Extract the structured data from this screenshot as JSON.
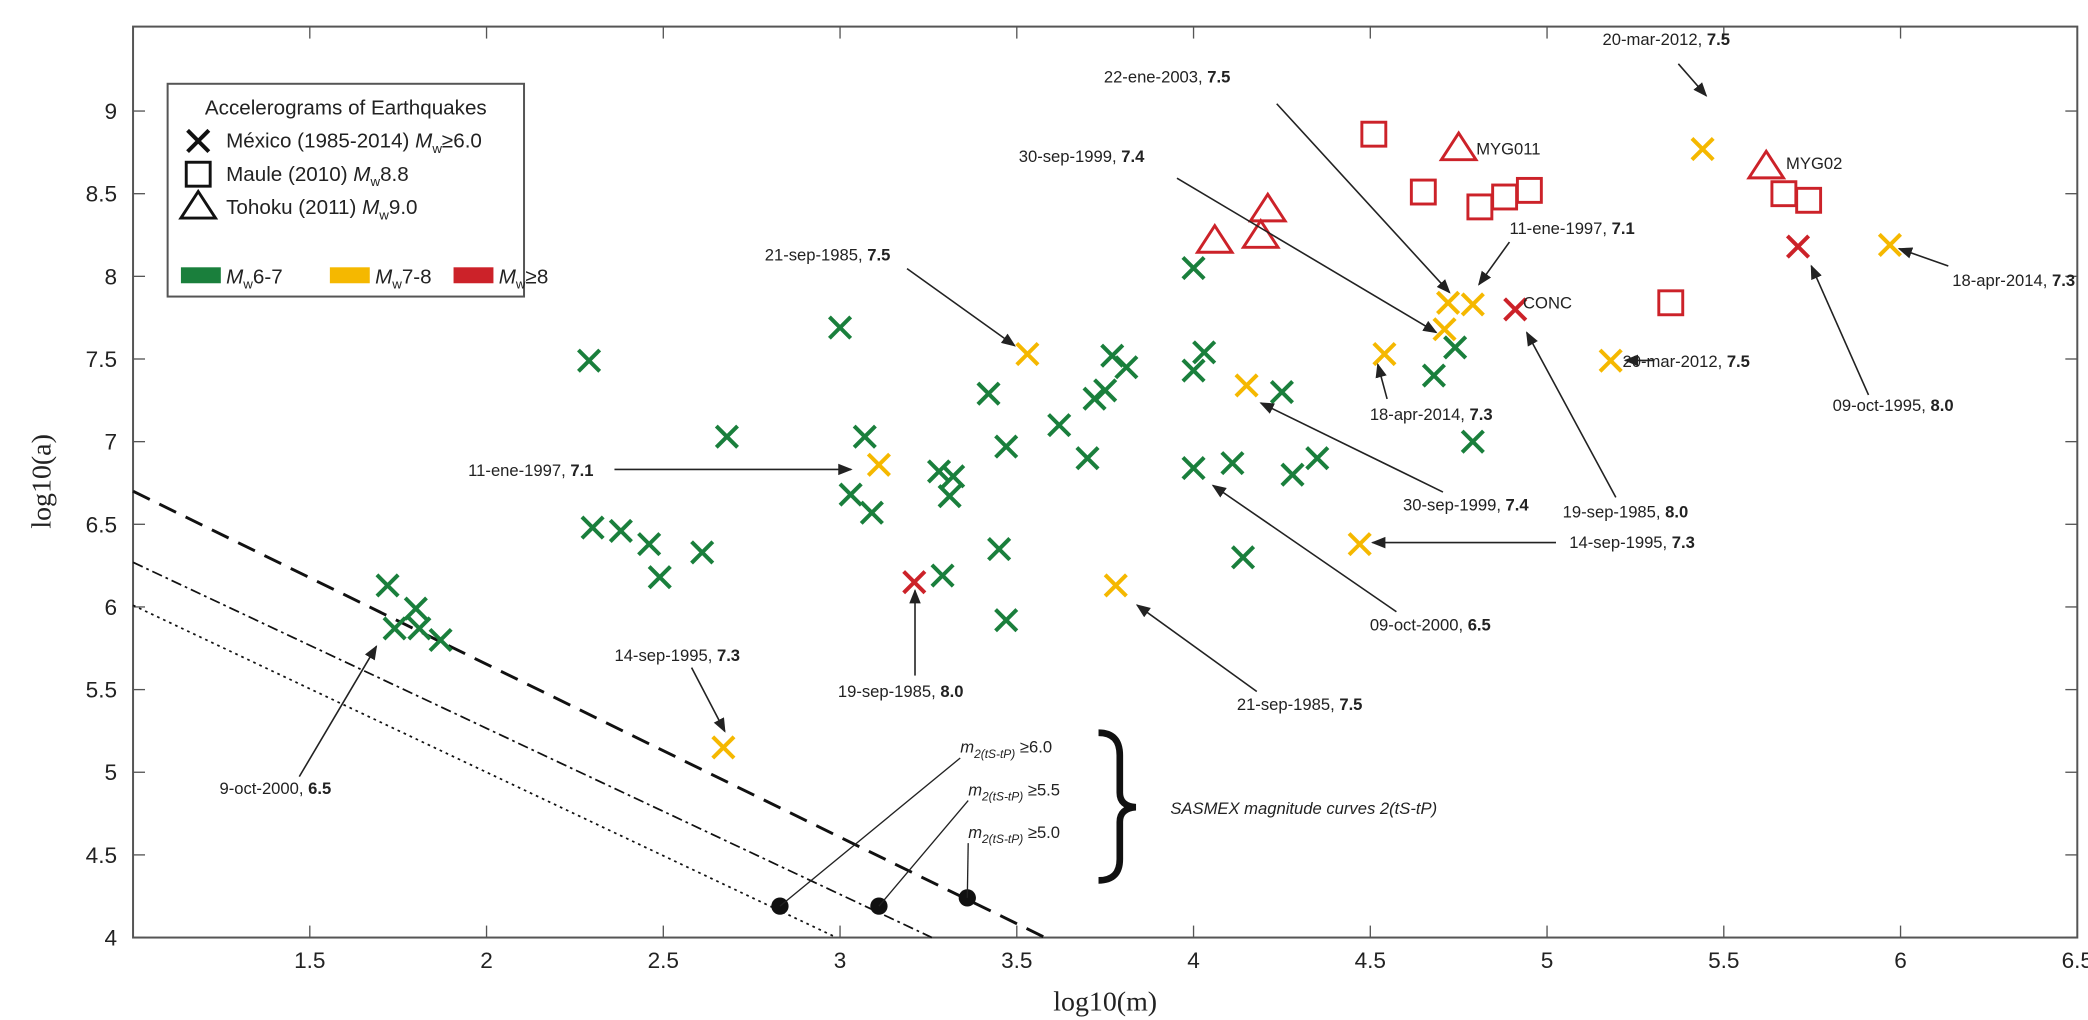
{
  "chart_data": {
    "type": "scatter",
    "xlabel": "log10(m)",
    "ylabel": "log10(a)",
    "xlim": [
      1,
      6.5
    ],
    "ylim": [
      4,
      9.5
    ],
    "xticks": [
      "1.5",
      "2",
      "2.5",
      "3",
      "3.5",
      "4",
      "4.5",
      "5",
      "5.5",
      "6",
      "6.5"
    ],
    "yticks": [
      "4",
      "4.5",
      "5",
      "5.5",
      "6",
      "6.5",
      "7",
      "7.5",
      "8",
      "8.5",
      "9"
    ],
    "grid": false,
    "legend": {
      "placement": "top-left",
      "title": "Accelerograms of Earthquakes",
      "entries": [
        {
          "marker": "cross",
          "pre": "México (1985-2014) ",
          "sym": "M",
          "sub": "w",
          "post": "≥6.0"
        },
        {
          "marker": "square",
          "pre": "Maule (2010) ",
          "sym": "M",
          "sub": "w",
          "post": "8.8"
        },
        {
          "marker": "triangle",
          "pre": "Tohoku (2011) ",
          "sym": "M",
          "sub": "w",
          "post": "9.0"
        }
      ],
      "colors": [
        {
          "color": "#1a7f3c",
          "sym": "M",
          "sub": "w",
          "post": "6-7"
        },
        {
          "color": "#f5b800",
          "sym": "M",
          "sub": "w",
          "post": "7-8"
        },
        {
          "color": "#cc2229",
          "sym": "M",
          "sub": "w",
          "post": "≥8"
        }
      ]
    },
    "series": [
      {
        "name": "México (1985-2014) Mw≥6.0 — Mw 6-7",
        "marker": "cross",
        "color": "#1a7f3c",
        "points": [
          [
            2.29,
            7.49
          ],
          [
            2.68,
            7.03
          ],
          [
            2.3,
            6.48
          ],
          [
            2.38,
            6.46
          ],
          [
            2.46,
            6.38
          ],
          [
            2.49,
            6.18
          ],
          [
            2.61,
            6.33
          ],
          [
            1.72,
            6.13
          ],
          [
            1.74,
            5.87
          ],
          [
            1.8,
            5.99
          ],
          [
            1.81,
            5.87
          ],
          [
            1.87,
            5.8
          ],
          [
            3.0,
            7.69
          ],
          [
            3.07,
            7.03
          ],
          [
            3.03,
            6.68
          ],
          [
            3.09,
            6.57
          ],
          [
            3.28,
            6.82
          ],
          [
            3.32,
            6.79
          ],
          [
            3.31,
            6.67
          ],
          [
            3.29,
            6.19
          ],
          [
            3.42,
            7.29
          ],
          [
            3.47,
            6.97
          ],
          [
            3.45,
            6.35
          ],
          [
            3.47,
            5.92
          ],
          [
            3.62,
            7.1
          ],
          [
            3.7,
            6.9
          ],
          [
            3.72,
            7.26
          ],
          [
            3.75,
            7.31
          ],
          [
            3.77,
            7.52
          ],
          [
            3.81,
            7.45
          ],
          [
            4.0,
            8.05
          ],
          [
            4.03,
            7.54
          ],
          [
            4.0,
            7.43
          ],
          [
            4.0,
            6.84
          ],
          [
            4.11,
            6.87
          ],
          [
            4.14,
            6.3
          ],
          [
            4.25,
            7.3
          ],
          [
            4.28,
            6.8
          ],
          [
            4.35,
            6.9
          ],
          [
            4.68,
            7.4
          ],
          [
            4.74,
            7.57
          ],
          [
            4.79,
            7.0
          ]
        ]
      },
      {
        "name": "México (1985-2014) Mw≥6.0 — Mw 7-8",
        "marker": "cross",
        "color": "#f5b800",
        "points": [
          [
            2.67,
            5.15
          ],
          [
            3.11,
            6.86
          ],
          [
            3.53,
            7.53
          ],
          [
            3.78,
            6.13
          ],
          [
            4.15,
            7.34
          ],
          [
            4.54,
            7.53
          ],
          [
            4.47,
            6.38
          ],
          [
            4.71,
            7.68
          ],
          [
            4.72,
            7.84
          ],
          [
            4.79,
            7.83
          ],
          [
            5.18,
            7.49
          ],
          [
            5.44,
            8.77
          ],
          [
            5.97,
            8.19
          ]
        ]
      },
      {
        "name": "México (1985-2014) Mw≥6.0 — Mw≥8",
        "marker": "cross",
        "color": "#cc2229",
        "points": [
          [
            3.21,
            6.15
          ],
          [
            4.91,
            7.8
          ],
          [
            5.71,
            8.18
          ]
        ]
      },
      {
        "name": "Maule (2010) Mw8.8",
        "marker": "square",
        "color": "#cc2229",
        "points": [
          [
            4.51,
            8.86
          ],
          [
            4.65,
            8.51
          ],
          [
            4.81,
            8.42
          ],
          [
            4.88,
            8.48
          ],
          [
            4.95,
            8.52
          ],
          [
            5.35,
            7.84
          ],
          [
            5.67,
            8.5
          ],
          [
            5.74,
            8.46
          ]
        ]
      },
      {
        "name": "Tohoku (2011) Mw9.0",
        "marker": "triangle",
        "color": "#cc2229",
        "points": [
          [
            4.75,
            8.77
          ],
          [
            5.62,
            8.66
          ],
          [
            4.06,
            8.21
          ],
          [
            4.21,
            8.4
          ],
          [
            4.19,
            8.24
          ]
        ]
      }
    ],
    "station_labels": [
      "MYG011",
      "MYG02",
      "CONC"
    ],
    "annotations": [
      {
        "date": "20-mar-2012, ",
        "mag": "7.5"
      },
      {
        "date": "22-ene-2003, ",
        "mag": "7.5"
      },
      {
        "date": "30-sep-1999, ",
        "mag": "7.4"
      },
      {
        "date": "11-ene-1997, ",
        "mag": "7.1"
      },
      {
        "date": "21-sep-1985, ",
        "mag": "7.5"
      },
      {
        "date": "11-ene-1997, ",
        "mag": "7.1"
      },
      {
        "date": "18-apr-2014, ",
        "mag": "7.3"
      },
      {
        "date": "30-sep-1999, ",
        "mag": "7.4"
      },
      {
        "date": "19-sep-1985, ",
        "mag": "8.0"
      },
      {
        "date": "14-sep-1995, ",
        "mag": " 7.3"
      },
      {
        "date": "09-oct-2000, ",
        "mag": "6.5"
      },
      {
        "date": "21-sep-1985, ",
        "mag": "7.5"
      },
      {
        "date": "19-sep-1985, ",
        "mag": "8.0"
      },
      {
        "date": "14-sep-1995, ",
        "mag": "7.3"
      },
      {
        "date": "9-oct-2000, ",
        "mag": "6.5"
      },
      {
        "date": "20-mar-2012, ",
        "mag": "7.5"
      },
      {
        "date": "09-oct-1995, ",
        "mag": "8.0"
      },
      {
        "date": "18-apr-2014, ",
        "mag": "7.3"
      }
    ],
    "sasmex": {
      "label": "SASMEX magnitude curves 2(tS-tP)",
      "curves": [
        {
          "label": "m2(tS-tP) ≥5.0",
          "sym": "m",
          "sub": "2(tS-tP)",
          "post": " ≥5.0",
          "style": "dashed",
          "line": [
            [
              1,
              6.7
            ],
            [
              3.58,
              4.0
            ]
          ],
          "point": [
            3.36,
            4.24
          ]
        },
        {
          "label": "m2(tS-tP) ≥5.5",
          "sym": "m",
          "sub": "2(tS-tP)",
          "post": " ≥5.5",
          "style": "dash-dot",
          "line": [
            [
              1,
              6.27
            ],
            [
              3.26,
              4.0
            ]
          ],
          "point": [
            3.11,
            4.19
          ]
        },
        {
          "label": "m2(tS-tP) ≥6.0",
          "sym": "m",
          "sub": "2(tS-tP)",
          "post": " ≥6.0",
          "style": "dotted",
          "line": [
            [
              1,
              6.01
            ],
            [
              2.99,
              4.0
            ]
          ],
          "point": [
            2.83,
            4.19
          ]
        }
      ]
    }
  }
}
